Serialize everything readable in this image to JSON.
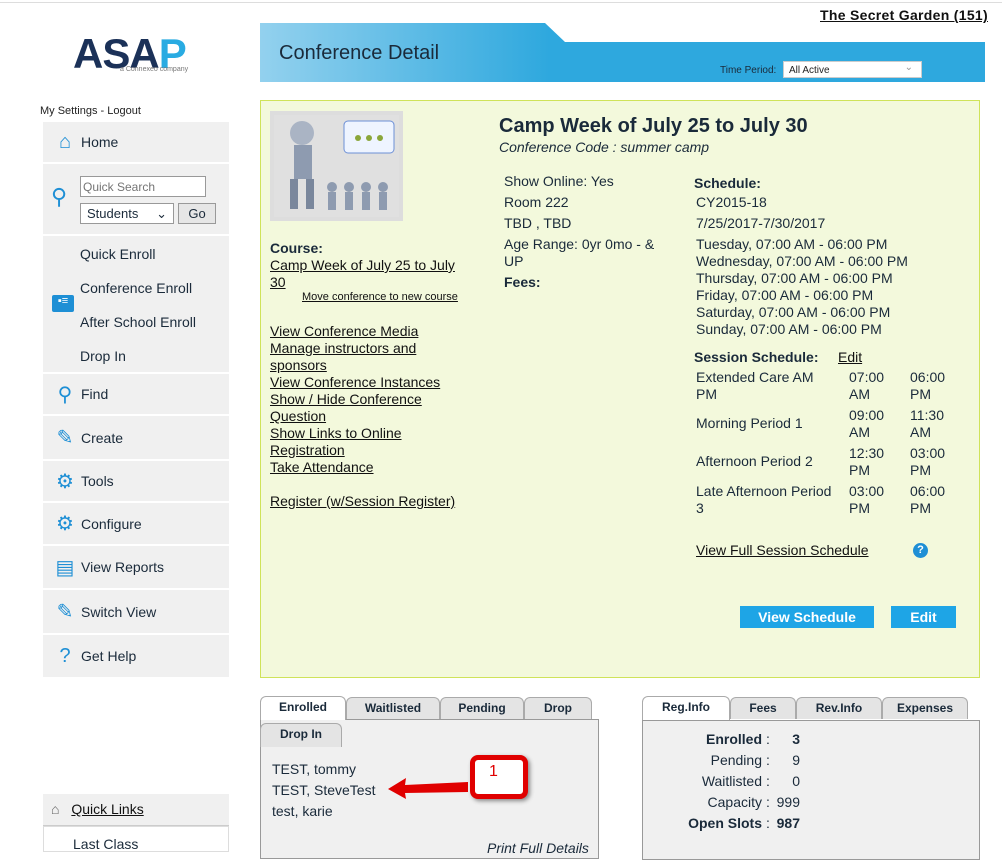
{
  "org_link": "The Secret Garden (151)",
  "logo": {
    "main": "ASA",
    "accent": "P",
    "sub": "a Connexeo company"
  },
  "settings": "My Settings - Logout",
  "header": {
    "title": "Conference Detail",
    "time_period_label": "Time Period:",
    "time_period_value": "All Active"
  },
  "sidebar": {
    "home": "Home",
    "search_placeholder": "Quick Search",
    "search_type": "Students",
    "go": "Go",
    "enroll": [
      "Quick Enroll",
      "Conference Enroll",
      "After School Enroll",
      "Drop In"
    ],
    "items": [
      "Find",
      "Create",
      "Tools",
      "Configure",
      "View Reports",
      "Switch View",
      "Get Help"
    ],
    "quick_links": "Quick Links",
    "last_class": "Last Class"
  },
  "conference": {
    "title": "Camp Week of July 25 to July 30",
    "code": "Conference Code : summer camp",
    "course_label": "Course:",
    "course_link_1": "Camp Week of July 25 to July",
    "course_link_2": "30",
    "move_link": "Move conference to new course",
    "links": [
      "View Conference Media",
      "Manage instructors and",
      "sponsors",
      "View Conference Instances",
      "Show / Hide Conference",
      "Question",
      "Show Links to Online",
      "Registration",
      "Take Attendance"
    ],
    "register": "Register (w/Session Register)",
    "info": [
      "Show Online: Yes",
      "Room 222",
      "TBD , TBD",
      "Age Range: 0yr 0mo - &",
      "UP"
    ],
    "fees_label": "Fees:",
    "schedule_label": "Schedule:",
    "schedule": [
      "CY2015-18",
      "7/25/2017-7/30/2017",
      "Tuesday, 07:00 AM - 06:00 PM",
      "Wednesday, 07:00 AM - 06:00 PM",
      "Thursday, 07:00 AM - 06:00 PM",
      "Friday, 07:00 AM - 06:00 PM",
      "Saturday, 07:00 AM - 06:00 PM",
      "Sunday, 07:00 AM - 06:00 PM"
    ],
    "session_label": "Session Schedule:",
    "session_edit": "Edit",
    "sessions": [
      {
        "name1": "Extended Care AM",
        "name2": "PM",
        "s1": "07:00",
        "s2": "AM",
        "e1": "06:00",
        "e2": "PM"
      },
      {
        "name1": "Morning Period 1",
        "name2": "",
        "s1": "09:00",
        "s2": "AM",
        "e1": "11:30",
        "e2": "AM"
      },
      {
        "name1": "Afternoon Period 2",
        "name2": "",
        "s1": "12:30",
        "s2": "PM",
        "e1": "03:00",
        "e2": "PM"
      },
      {
        "name1": "Late Afternoon Period",
        "name2": "3",
        "s1": "03:00",
        "s2": "PM",
        "e1": "06:00",
        "e2": "PM"
      }
    ],
    "full_schedule": "View Full Session Schedule",
    "view_schedule": "View Schedule",
    "edit": "Edit"
  },
  "enroll_tabs": {
    "tabs": [
      "Enrolled",
      "Waitlisted",
      "Pending",
      "Drop",
      "Drop In"
    ],
    "names": [
      "TEST, tommy",
      "TEST, SteveTest",
      "test, karie"
    ],
    "callout": "1",
    "print": "Print Full Details"
  },
  "reg_tabs": {
    "tabs": [
      "Reg.Info",
      "Fees",
      "Rev.Info",
      "Expenses"
    ],
    "rows": [
      {
        "label": "Enrolled",
        "value": "3",
        "bold": true
      },
      {
        "label": "Pending",
        "value": "9"
      },
      {
        "label": "Waitlisted",
        "value": "0"
      },
      {
        "label": "Capacity",
        "value": "999"
      },
      {
        "label": "Open Slots",
        "value": "987",
        "bold": true
      }
    ]
  },
  "colors": {
    "accent": "#1ea5e6",
    "panel": "#f3f9dc",
    "navy": "#1b3158",
    "callout": "#e00000"
  }
}
